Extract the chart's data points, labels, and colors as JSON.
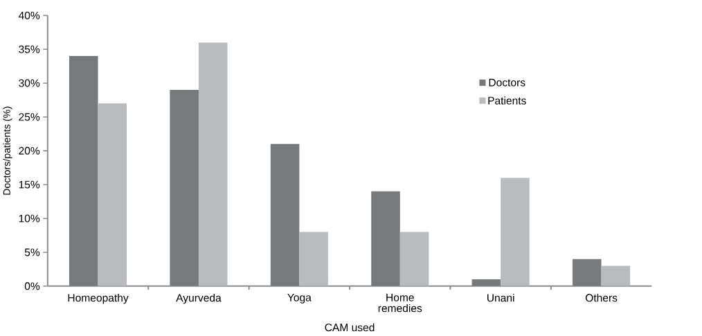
{
  "chart_data": {
    "type": "bar",
    "xlabel": "CAM used",
    "ylabel": "Doctors/patients (%)",
    "categories": [
      "Homeopathy",
      "Ayurveda",
      "Yoga",
      "Home remedies",
      "Unani",
      "Others"
    ],
    "series": [
      {
        "name": "Doctors",
        "color": "#77797b",
        "values": [
          34,
          29,
          21,
          14,
          1,
          4
        ]
      },
      {
        "name": "Patients",
        "color": "#b9bbbd",
        "values": [
          27,
          36,
          8,
          8,
          16,
          3
        ]
      }
    ],
    "ylim": [
      0,
      40
    ],
    "yticks": [
      {
        "value": 0,
        "label": "0%"
      },
      {
        "value": 5,
        "label": "5%"
      },
      {
        "value": 10,
        "label": "10%"
      },
      {
        "value": 15,
        "label": "15%"
      },
      {
        "value": 20,
        "label": "20%"
      },
      {
        "value": 25,
        "label": "25%"
      },
      {
        "value": 30,
        "label": "30%"
      },
      {
        "value": 35,
        "label": "35%"
      },
      {
        "value": 40,
        "label": "40%"
      }
    ],
    "grid": false,
    "legend": "right"
  }
}
